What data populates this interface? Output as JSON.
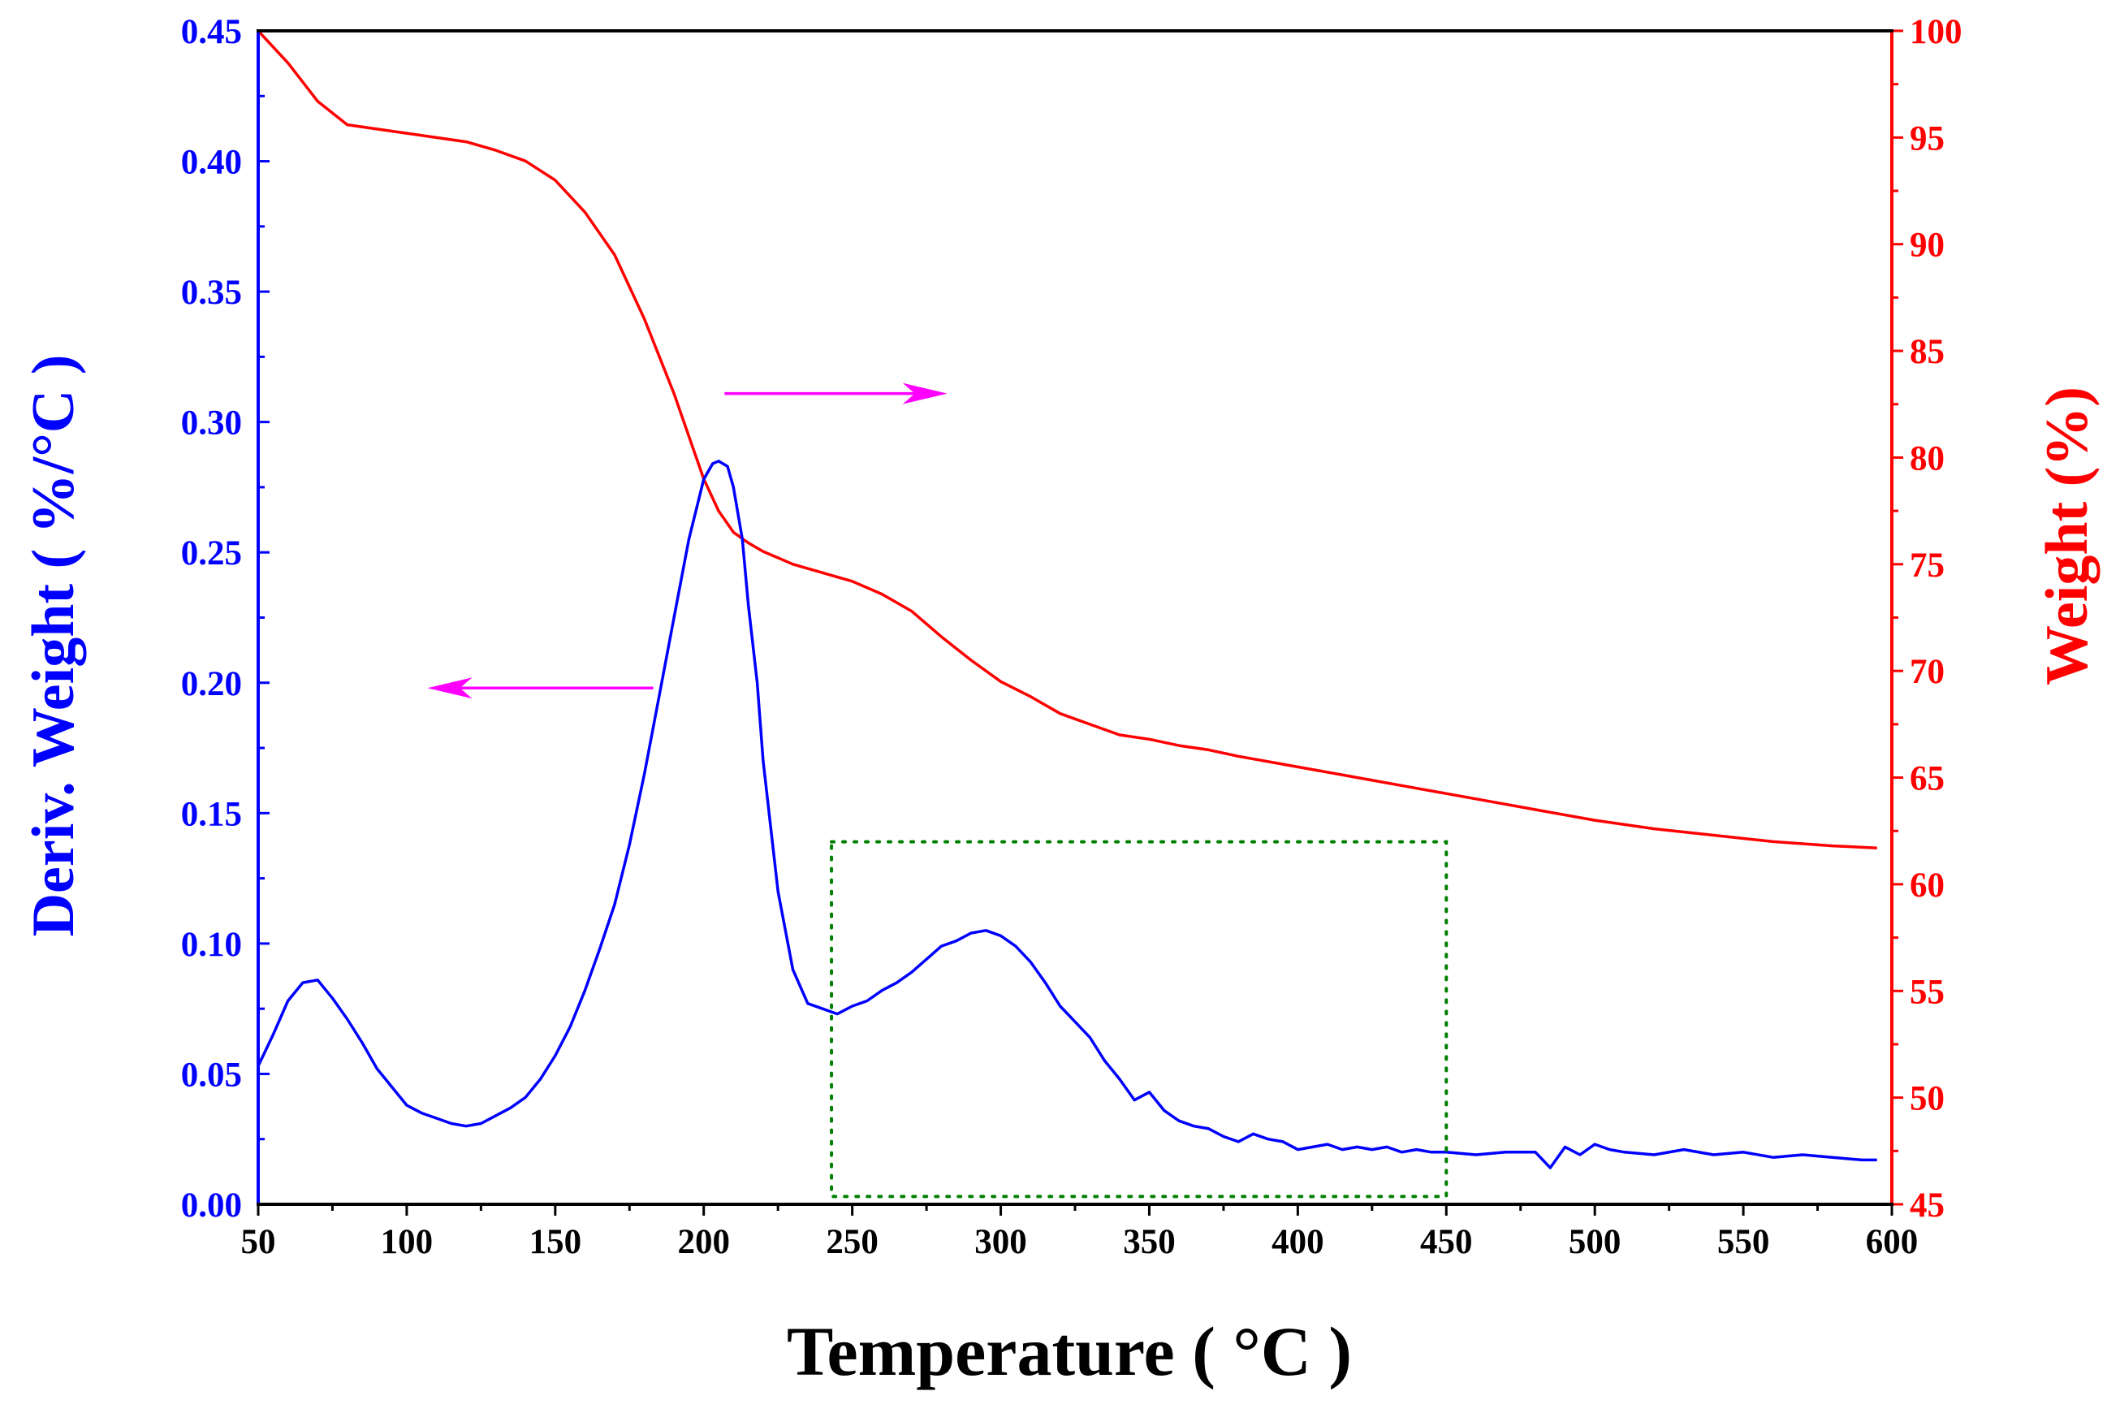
{
  "colors": {
    "deriv": "#0000ff",
    "weight": "#ff0000",
    "arrow": "#ff00ff",
    "box": "#008000",
    "axis": "#000000"
  },
  "chart_data": {
    "type": "line",
    "xlabel": "Temperature ( °C )",
    "ylabel_left": "Deriv. Weight ( %/°C )",
    "ylabel_right": "Weight (%)",
    "xlim": [
      50,
      600
    ],
    "ylim_left": [
      0.0,
      0.45
    ],
    "ylim_right": [
      45,
      100
    ],
    "x_ticks": [
      "50",
      "100",
      "150",
      "200",
      "250",
      "300",
      "350",
      "400",
      "450",
      "500",
      "550",
      "600"
    ],
    "y_ticks_left": [
      "0.00",
      "0.05",
      "0.10",
      "0.15",
      "0.20",
      "0.25",
      "0.30",
      "0.35",
      "0.40",
      "0.45"
    ],
    "y_ticks_right": [
      "45",
      "50",
      "55",
      "60",
      "65",
      "70",
      "75",
      "80",
      "85",
      "90",
      "95",
      "100"
    ],
    "series": [
      {
        "name": "Deriv. Weight",
        "axis": "left",
        "x": [
          50,
          55,
          60,
          65,
          70,
          75,
          80,
          85,
          90,
          95,
          100,
          105,
          110,
          115,
          120,
          125,
          130,
          135,
          140,
          145,
          150,
          155,
          160,
          165,
          170,
          175,
          180,
          185,
          190,
          195,
          200,
          203,
          205,
          208,
          210,
          213,
          215,
          218,
          220,
          225,
          230,
          235,
          240,
          245,
          250,
          255,
          260,
          265,
          270,
          275,
          280,
          285,
          290,
          295,
          300,
          305,
          310,
          315,
          320,
          325,
          330,
          335,
          340,
          345,
          350,
          355,
          360,
          365,
          370,
          375,
          380,
          385,
          390,
          395,
          400,
          405,
          410,
          415,
          420,
          425,
          430,
          435,
          440,
          445,
          450,
          460,
          470,
          480,
          485,
          490,
          495,
          500,
          505,
          510,
          520,
          530,
          540,
          550,
          560,
          570,
          580,
          590,
          595
        ],
        "y": [
          0.053,
          0.065,
          0.078,
          0.085,
          0.086,
          0.079,
          0.071,
          0.062,
          0.052,
          0.045,
          0.038,
          0.035,
          0.033,
          0.031,
          0.03,
          0.031,
          0.034,
          0.037,
          0.041,
          0.048,
          0.057,
          0.068,
          0.082,
          0.098,
          0.115,
          0.138,
          0.165,
          0.195,
          0.225,
          0.255,
          0.278,
          0.284,
          0.285,
          0.283,
          0.275,
          0.255,
          0.23,
          0.2,
          0.17,
          0.12,
          0.09,
          0.077,
          0.075,
          0.073,
          0.076,
          0.078,
          0.082,
          0.085,
          0.089,
          0.094,
          0.099,
          0.101,
          0.104,
          0.105,
          0.103,
          0.099,
          0.093,
          0.085,
          0.076,
          0.07,
          0.064,
          0.055,
          0.048,
          0.04,
          0.043,
          0.036,
          0.032,
          0.03,
          0.029,
          0.026,
          0.024,
          0.027,
          0.025,
          0.024,
          0.021,
          0.022,
          0.023,
          0.021,
          0.022,
          0.021,
          0.022,
          0.02,
          0.021,
          0.02,
          0.02,
          0.019,
          0.02,
          0.02,
          0.014,
          0.022,
          0.019,
          0.023,
          0.021,
          0.02,
          0.019,
          0.021,
          0.019,
          0.02,
          0.018,
          0.019,
          0.018,
          0.017,
          0.017
        ]
      },
      {
        "name": "Weight",
        "axis": "right",
        "x": [
          50,
          60,
          70,
          80,
          90,
          100,
          110,
          120,
          130,
          140,
          150,
          160,
          170,
          180,
          190,
          195,
          200,
          205,
          210,
          215,
          220,
          225,
          230,
          240,
          250,
          260,
          270,
          280,
          290,
          300,
          310,
          320,
          330,
          340,
          350,
          360,
          370,
          380,
          400,
          420,
          440,
          460,
          480,
          500,
          520,
          540,
          560,
          580,
          595
        ],
        "y": [
          100,
          98.5,
          96.7,
          95.6,
          95.4,
          95.2,
          95.0,
          94.8,
          94.4,
          93.9,
          93.0,
          91.5,
          89.5,
          86.5,
          83.0,
          81.0,
          79.0,
          77.5,
          76.5,
          76.0,
          75.6,
          75.3,
          75.0,
          74.6,
          74.2,
          73.6,
          72.8,
          71.6,
          70.5,
          69.5,
          68.8,
          68.0,
          67.5,
          67.0,
          66.8,
          66.5,
          66.3,
          66.0,
          65.5,
          65.0,
          64.5,
          64.0,
          63.5,
          63.0,
          62.6,
          62.3,
          62.0,
          61.8,
          61.7
        ]
      }
    ],
    "annotations": [
      {
        "type": "arrow",
        "direction": "left",
        "from_x": 183,
        "to_x": 107,
        "y_left": 0.198,
        "points_to": "left axis"
      },
      {
        "type": "arrow",
        "direction": "right",
        "from_x": 207,
        "to_x": 282,
        "y_right": 83.0,
        "points_to": "right axis"
      },
      {
        "type": "dotted-box",
        "x_range": [
          243,
          450
        ],
        "y_left_range": [
          0.003,
          0.139
        ]
      }
    ]
  }
}
